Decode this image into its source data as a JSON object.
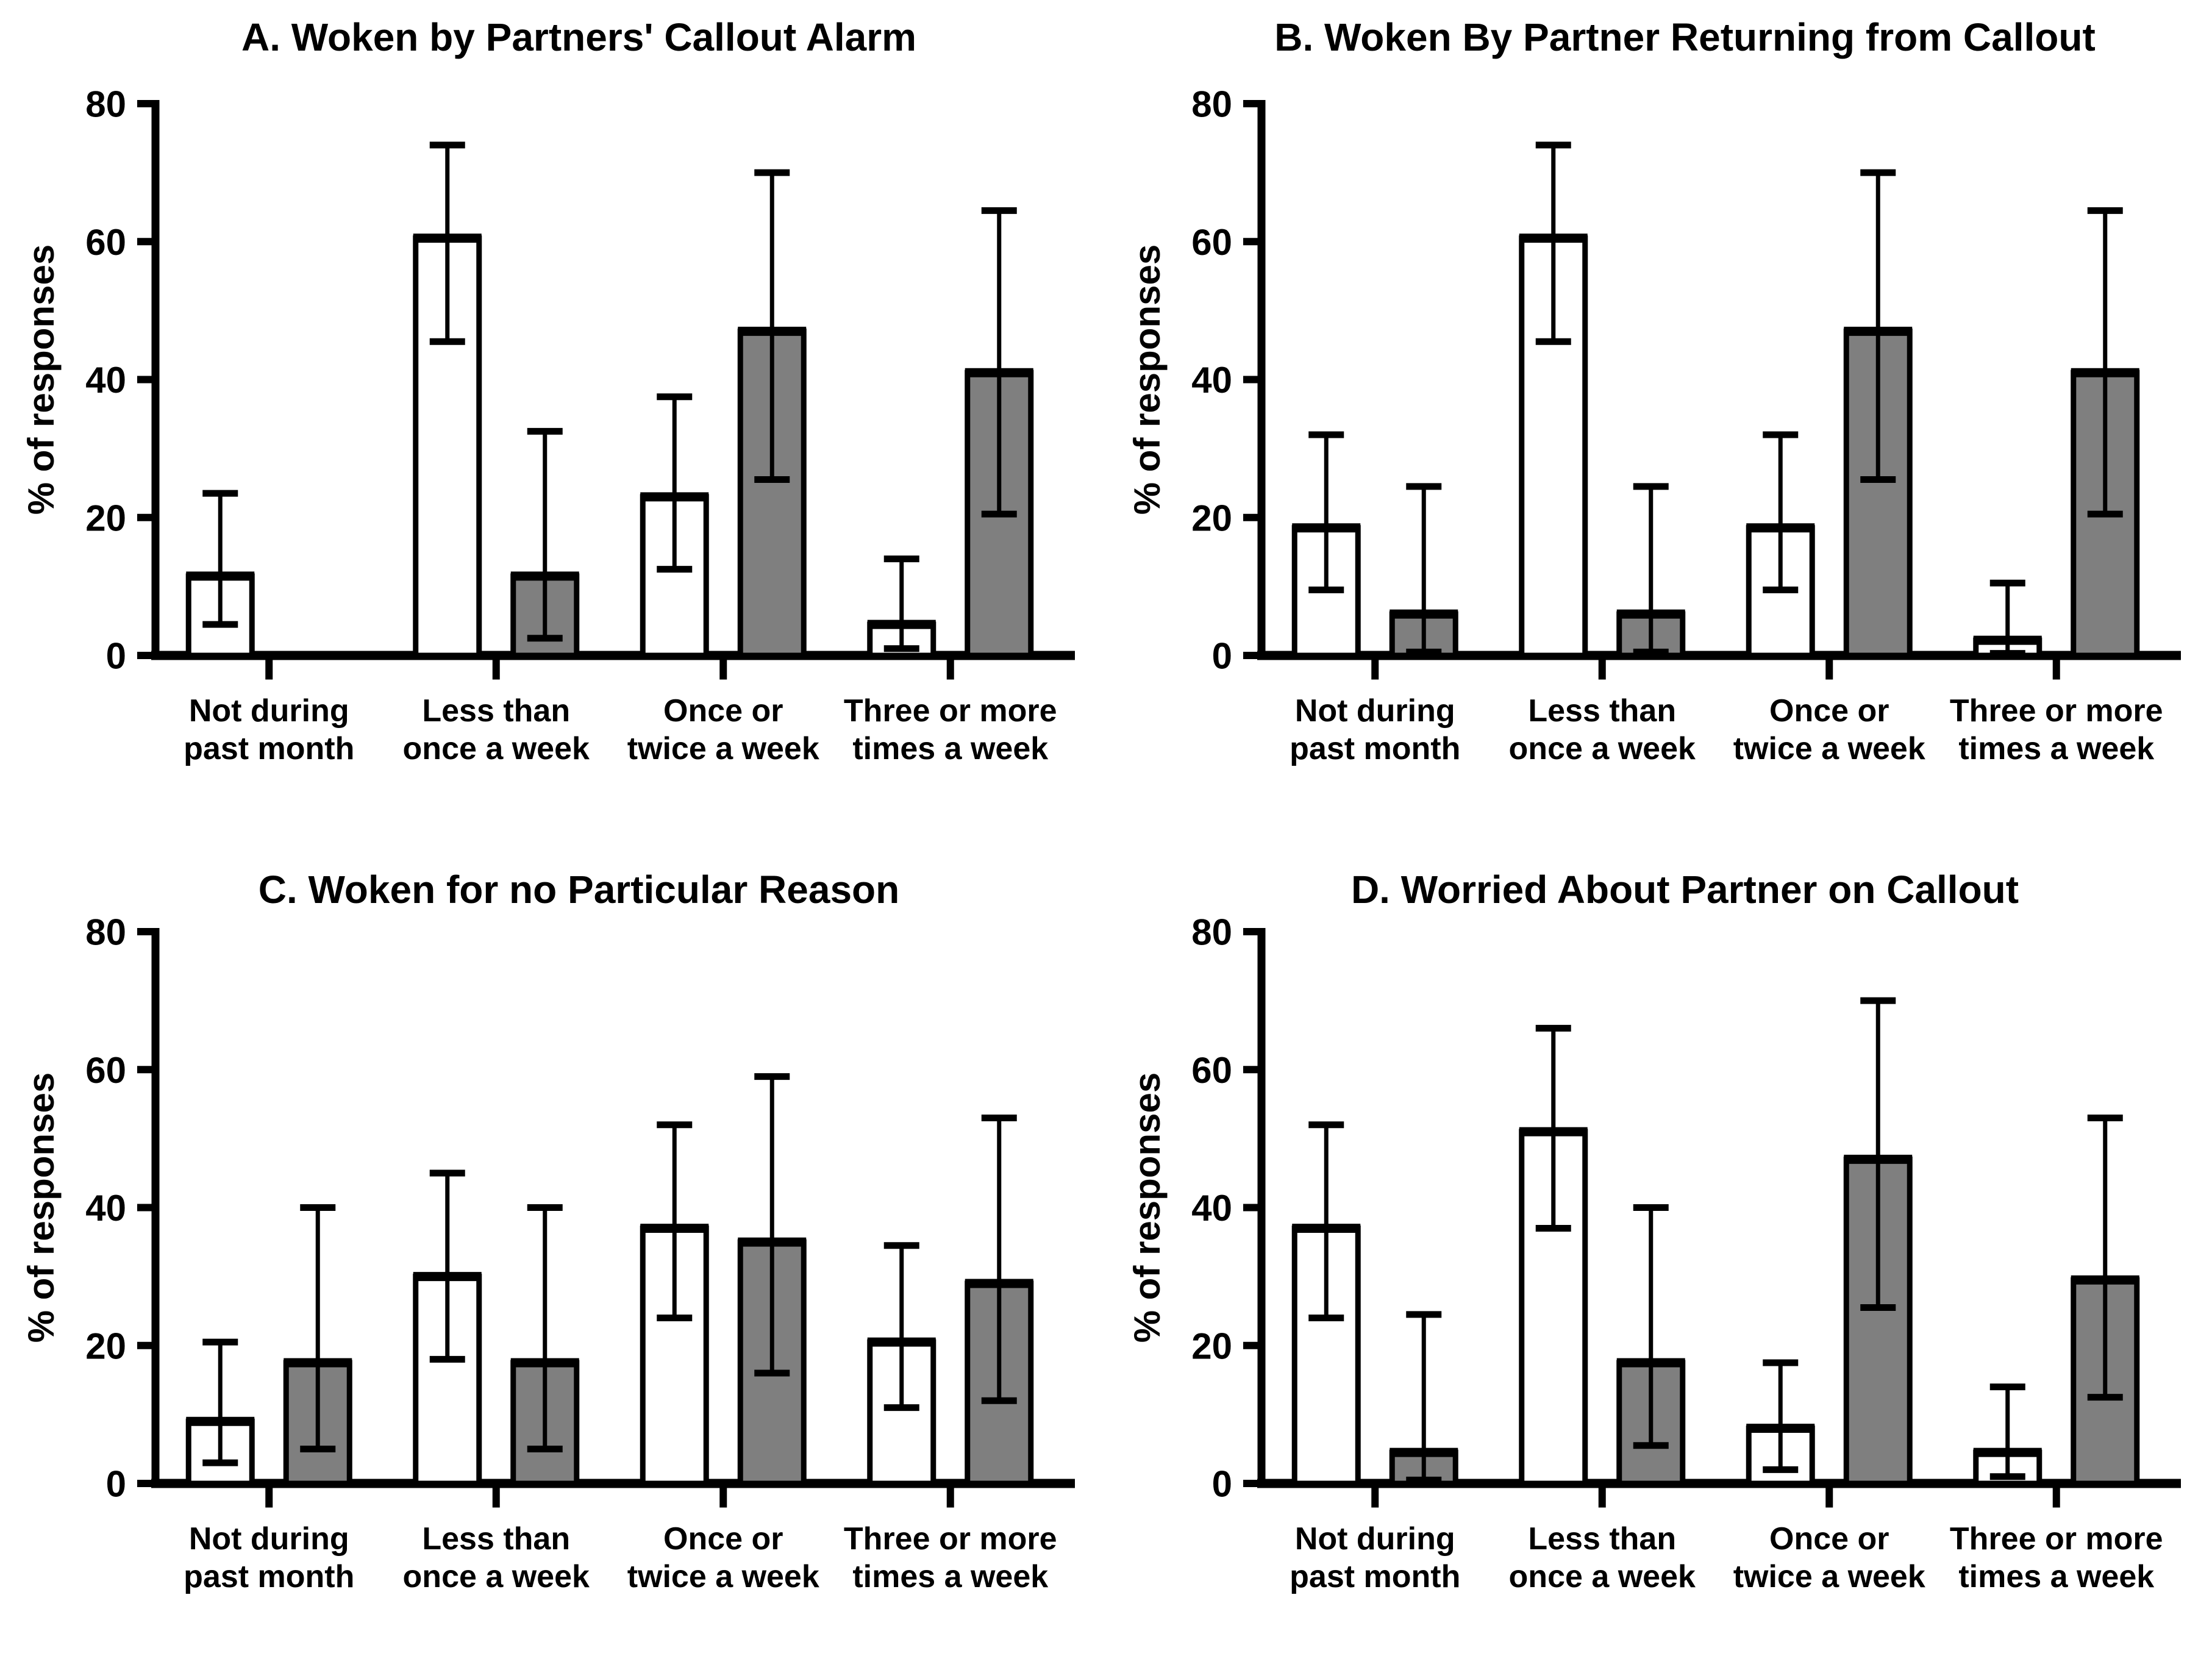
{
  "figure": {
    "background": "#ffffff",
    "axis_color": "#000000",
    "white_bar_fill": "#ffffff",
    "gray_bar_fill": "#7f7f7f",
    "bar_outline_color": "#000000"
  },
  "chart_data": [
    {
      "id": "A",
      "type": "bar",
      "title": "A. Woken by Partners' Callout Alarm",
      "ylabel": "% of responses",
      "ylim": [
        0,
        80
      ],
      "yticks": [
        0,
        20,
        40,
        60,
        80
      ],
      "grid": "off",
      "legend": "none",
      "categories": [
        [
          "Not during",
          "past month"
        ],
        [
          "Less than",
          "once a week"
        ],
        [
          "Once or",
          "twice a week"
        ],
        [
          "Three or more",
          "times a week"
        ]
      ],
      "series": [
        {
          "name": "white",
          "fill": "#ffffff",
          "values": [
            11.5,
            60.5,
            23,
            4.5
          ],
          "err_low": [
            4.5,
            45.5,
            12.5,
            1
          ],
          "err_high": [
            23.5,
            74,
            37.5,
            14
          ]
        },
        {
          "name": "gray",
          "fill": "#7f7f7f",
          "values": [
            0,
            11.5,
            47,
            41
          ],
          "err_low": [
            null,
            2.5,
            25.5,
            20.5
          ],
          "err_high": [
            null,
            32.5,
            70,
            64.5
          ]
        }
      ]
    },
    {
      "id": "B",
      "type": "bar",
      "title": "B. Woken By Partner Returning from Callout",
      "ylabel": "% of responses",
      "ylim": [
        0,
        80
      ],
      "yticks": [
        0,
        20,
        40,
        60,
        80
      ],
      "grid": "off",
      "legend": "none",
      "categories": [
        [
          "Not during",
          "past month"
        ],
        [
          "Less than",
          "once a week"
        ],
        [
          "Once or",
          "twice a week"
        ],
        [
          "Three or more",
          "times a week"
        ]
      ],
      "series": [
        {
          "name": "white",
          "fill": "#ffffff",
          "values": [
            18.5,
            60.5,
            18.5,
            2.2
          ],
          "err_low": [
            9.5,
            45.5,
            9.5,
            0.3
          ],
          "err_high": [
            32,
            74,
            32,
            10.5
          ]
        },
        {
          "name": "gray",
          "fill": "#7f7f7f",
          "values": [
            6,
            6,
            47,
            41
          ],
          "err_low": [
            0.5,
            0.5,
            25.5,
            20.5
          ],
          "err_high": [
            24.5,
            24.5,
            70,
            64.5
          ]
        }
      ]
    },
    {
      "id": "C",
      "type": "bar",
      "title": "C. Woken for no Particular Reason",
      "ylabel": "% of responses",
      "ylim": [
        0,
        80
      ],
      "yticks": [
        0,
        20,
        40,
        60,
        80
      ],
      "grid": "off",
      "legend": "none",
      "categories": [
        [
          "Not during",
          "past month"
        ],
        [
          "Less than",
          "once a week"
        ],
        [
          "Once or",
          "twice a week"
        ],
        [
          "Three or more",
          "times a week"
        ]
      ],
      "series": [
        {
          "name": "white",
          "fill": "#ffffff",
          "values": [
            9,
            30,
            37,
            20.5
          ],
          "err_low": [
            3,
            18,
            24,
            11
          ],
          "err_high": [
            20.5,
            45,
            52,
            34.5
          ]
        },
        {
          "name": "gray",
          "fill": "#7f7f7f",
          "values": [
            17.5,
            17.5,
            35,
            29
          ],
          "err_low": [
            5,
            5,
            16,
            12
          ],
          "err_high": [
            40,
            40,
            59,
            53
          ]
        }
      ]
    },
    {
      "id": "D",
      "type": "bar",
      "title": "D. Worried About Partner on Callout",
      "ylabel": "% of responses",
      "ylim": [
        0,
        80
      ],
      "yticks": [
        0,
        20,
        40,
        60,
        80
      ],
      "grid": "off",
      "legend": "none",
      "categories": [
        [
          "Not during",
          "past month"
        ],
        [
          "Less than",
          "once a week"
        ],
        [
          "Once or",
          "twice a week"
        ],
        [
          "Three or more",
          "times a week"
        ]
      ],
      "series": [
        {
          "name": "white",
          "fill": "#ffffff",
          "values": [
            37,
            51,
            8,
            4.5
          ],
          "err_low": [
            24,
            37,
            2,
            1
          ],
          "err_high": [
            52,
            66,
            17.5,
            14
          ]
        },
        {
          "name": "gray",
          "fill": "#7f7f7f",
          "values": [
            4.5,
            17.5,
            47,
            29.5
          ],
          "err_low": [
            0.5,
            5.5,
            25.5,
            12.5
          ],
          "err_high": [
            24.5,
            40,
            70,
            53
          ]
        }
      ]
    }
  ]
}
